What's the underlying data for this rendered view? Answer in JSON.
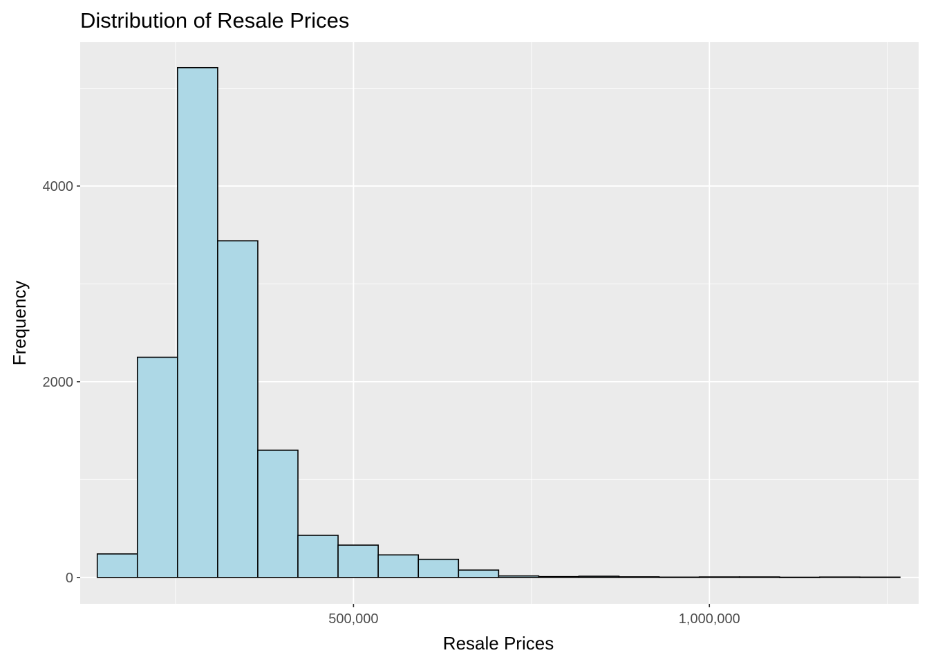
{
  "chart_data": {
    "type": "bar",
    "title": "Distribution of Resale Prices",
    "xlabel": "Resale Prices",
    "ylabel": "Frequency",
    "bin_width": 56388,
    "bins": [
      {
        "start": 140000,
        "end": 196388,
        "count": 240
      },
      {
        "start": 196388,
        "end": 252776,
        "count": 2250
      },
      {
        "start": 252776,
        "end": 309164,
        "count": 5210
      },
      {
        "start": 309164,
        "end": 365552,
        "count": 3440
      },
      {
        "start": 365552,
        "end": 421940,
        "count": 1300
      },
      {
        "start": 421940,
        "end": 478328,
        "count": 430
      },
      {
        "start": 478328,
        "end": 534716,
        "count": 330
      },
      {
        "start": 534716,
        "end": 591104,
        "count": 230
      },
      {
        "start": 591104,
        "end": 647492,
        "count": 185
      },
      {
        "start": 647492,
        "end": 703880,
        "count": 75
      },
      {
        "start": 703880,
        "end": 760268,
        "count": 15
      },
      {
        "start": 760268,
        "end": 816656,
        "count": 8
      },
      {
        "start": 816656,
        "end": 873044,
        "count": 12
      },
      {
        "start": 873044,
        "end": 929432,
        "count": 6
      },
      {
        "start": 929432,
        "end": 985820,
        "count": 3
      },
      {
        "start": 985820,
        "end": 1042208,
        "count": 5
      },
      {
        "start": 1042208,
        "end": 1098596,
        "count": 5
      },
      {
        "start": 1098596,
        "end": 1154984,
        "count": 2
      },
      {
        "start": 1154984,
        "end": 1211372,
        "count": 4
      },
      {
        "start": 1211372,
        "end": 1267760,
        "count": 3
      }
    ],
    "xlim": [
      116000,
      1294000
    ],
    "ylim": [
      -270,
      5470
    ],
    "x_ticks": [
      500000,
      1000000
    ],
    "x_tick_labels": [
      "500,000",
      "1,000,000"
    ],
    "x_minor_ticks": [
      250000,
      750000,
      1250000
    ],
    "y_ticks": [
      0,
      2000,
      4000
    ],
    "y_tick_labels": [
      "0",
      "2000",
      "4000"
    ],
    "y_minor_ticks": [
      1000,
      3000,
      5000
    ],
    "bar_fill": "#add8e6",
    "bar_stroke": "#000000",
    "panel_background": "#ebebeb",
    "grid_color": "#ffffff",
    "grid": true,
    "legend": "none"
  }
}
